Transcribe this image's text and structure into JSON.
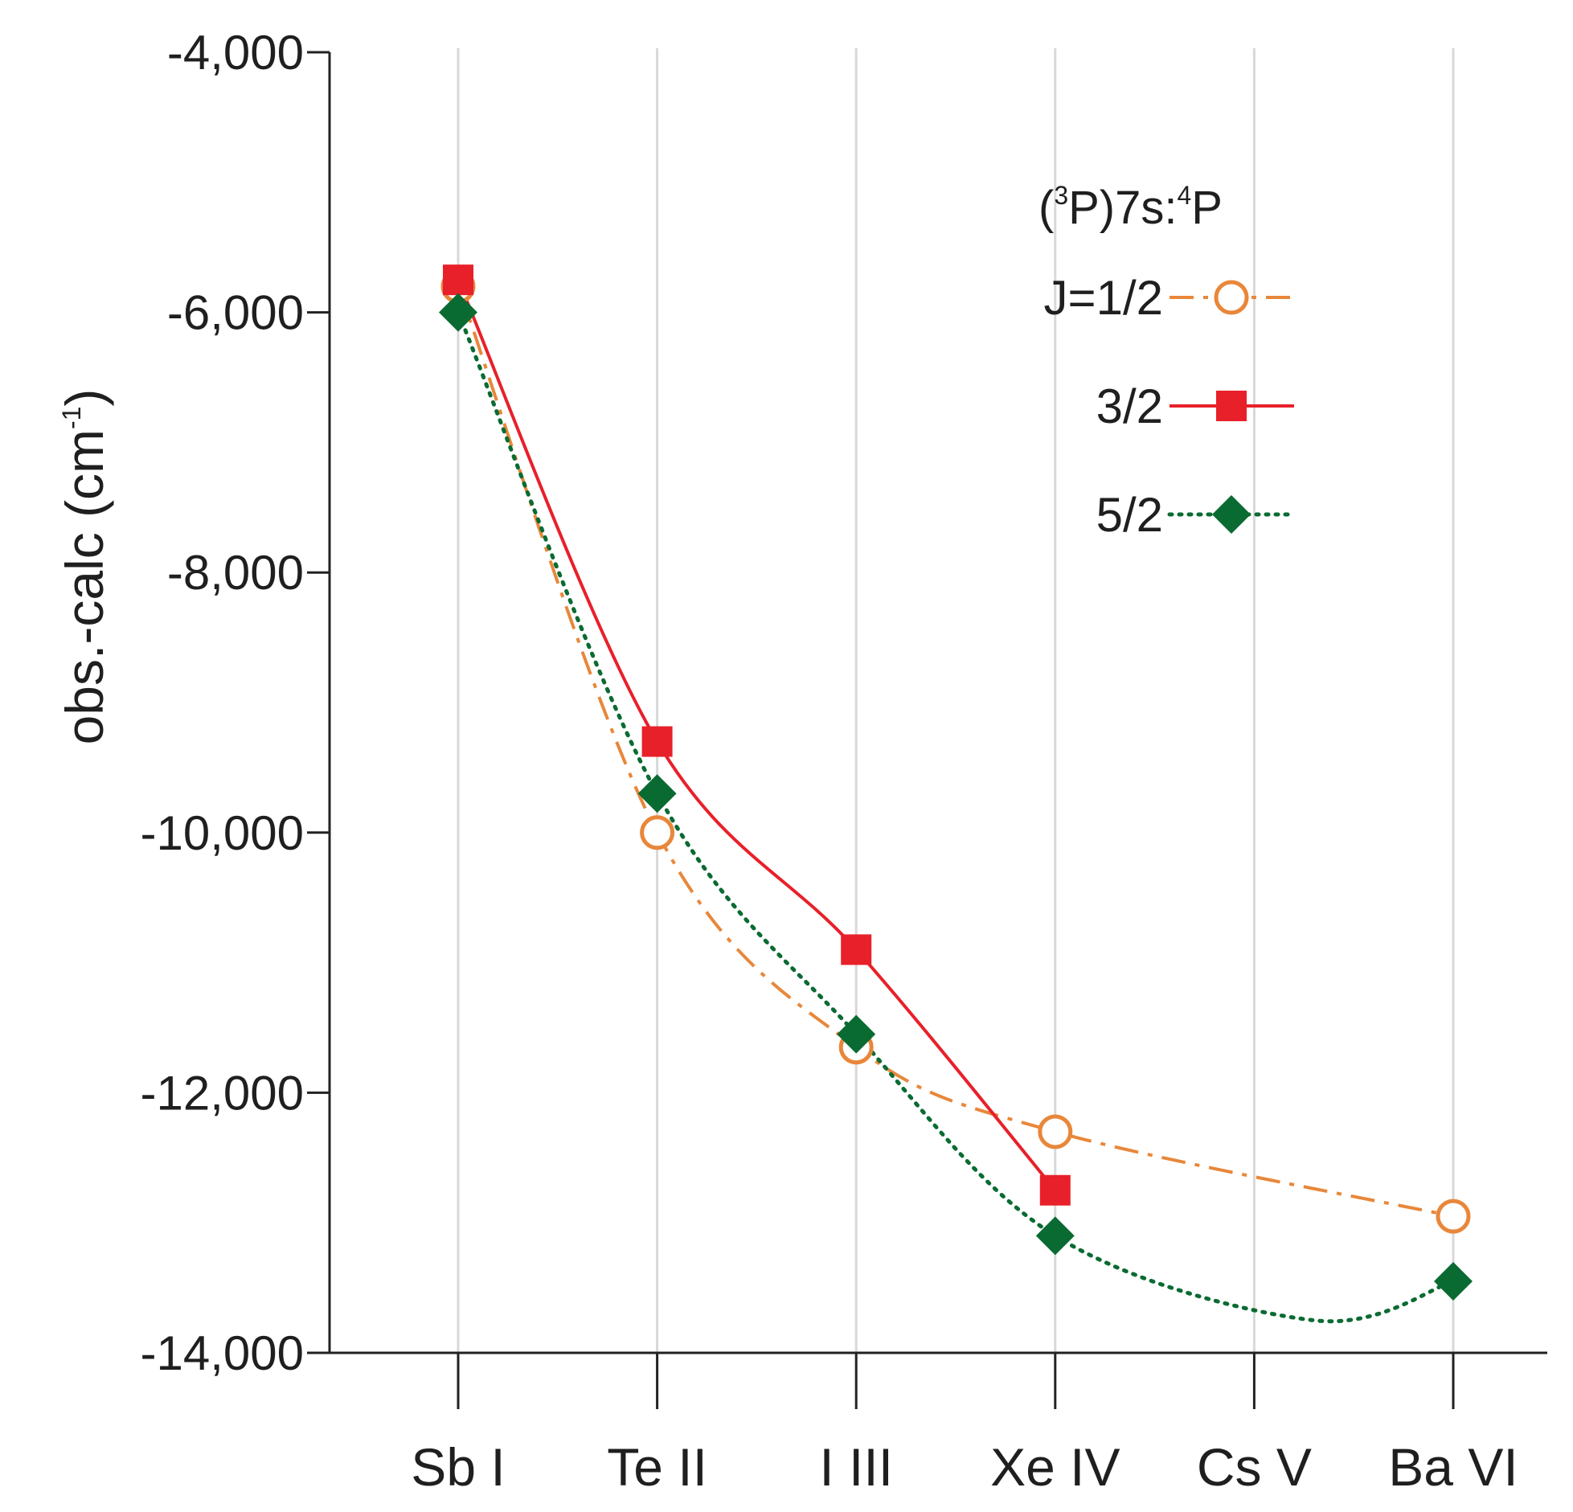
{
  "chart_data": {
    "type": "line",
    "title": "",
    "xlabel": "",
    "ylabel": "obs.-calc (cm",
    "ylabel_superscript": "-1",
    "ylabel_suffix": ")",
    "categories": [
      "Sb I",
      "Te II",
      "I III",
      "Xe IV",
      "Cs V",
      "Ba VI"
    ],
    "ylim": [
      -14000,
      -4000
    ],
    "yticks": [
      -4000,
      -6000,
      -8000,
      -10000,
      -12000,
      -14000
    ],
    "ytick_labels": [
      "-4,000",
      "-6,000",
      "-8,000",
      "-10,000",
      "-12,000",
      "-14,000"
    ],
    "grid": "vertical",
    "legend": {
      "position": "top-right",
      "title_parts": [
        "(",
        "3",
        "P)7s:",
        "4",
        "P"
      ]
    },
    "series": [
      {
        "name": "J=1/2",
        "color": "#E8873A",
        "marker": "open-circle",
        "line": "dash-dot",
        "values": [
          -5800,
          -10000,
          -11650,
          -12300,
          null,
          -12950
        ]
      },
      {
        "name": "3/2",
        "color": "#E8202A",
        "marker": "square",
        "line": "solid",
        "values": [
          -5750,
          -9300,
          -10900,
          -12750,
          null,
          null
        ]
      },
      {
        "name": "5/2",
        "color": "#0A6B32",
        "marker": "diamond",
        "line": "dotted",
        "values": [
          -6000,
          -9700,
          -11550,
          -13100,
          null,
          -13450
        ],
        "curve_extra": {
          "x_index": 4.3,
          "value": -13750
        }
      }
    ]
  }
}
